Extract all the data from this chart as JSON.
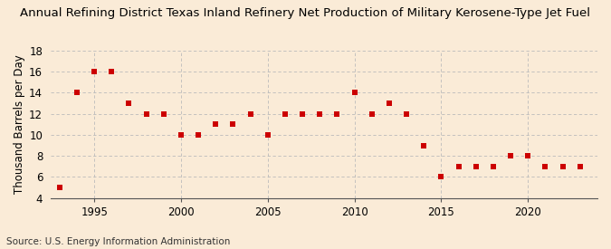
{
  "title": "Annual Refining District Texas Inland Refinery Net Production of Military Kerosene-Type Jet Fuel",
  "ylabel": "Thousand Barrels per Day",
  "source": "Source: U.S. Energy Information Administration",
  "background_color": "#faebd7",
  "years": [
    1993,
    1994,
    1995,
    1996,
    1997,
    1998,
    1999,
    2000,
    2001,
    2002,
    2003,
    2004,
    2005,
    2006,
    2007,
    2008,
    2009,
    2010,
    2011,
    2012,
    2013,
    2014,
    2015,
    2016,
    2017,
    2018,
    2019,
    2020,
    2021,
    2022,
    2023
  ],
  "values": [
    5,
    14,
    16,
    16,
    13,
    12,
    12,
    10,
    10,
    11,
    11,
    12,
    10,
    12,
    12,
    12,
    12,
    14,
    12,
    13,
    12,
    9,
    6,
    7,
    7,
    7,
    8,
    8,
    7,
    7,
    7
  ],
  "marker_color": "#cc0000",
  "marker_size": 18,
  "ylim": [
    4,
    18
  ],
  "yticks": [
    4,
    6,
    8,
    10,
    12,
    14,
    16,
    18
  ],
  "xlim": [
    1992.5,
    2024
  ],
  "xticks": [
    1995,
    2000,
    2005,
    2010,
    2015,
    2020
  ],
  "grid_color": "#bbbbbb",
  "title_fontsize": 9.5,
  "axis_fontsize": 8.5,
  "source_fontsize": 7.5
}
